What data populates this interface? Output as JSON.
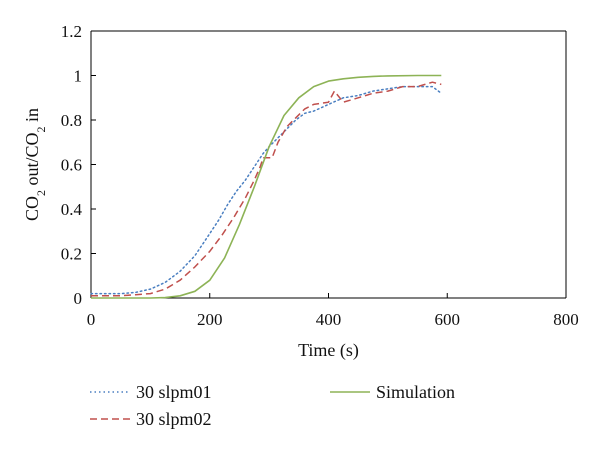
{
  "chart_data": {
    "type": "line",
    "title": "",
    "xlabel": "Time (s)",
    "ylabel": {
      "part1": "CO",
      "sub1": "2",
      "part2": " out/CO",
      "sub2": "2",
      "part3": " in"
    },
    "xlim": [
      0,
      800
    ],
    "ylim": [
      0,
      1.2
    ],
    "xticks": [
      0,
      200,
      400,
      600,
      800
    ],
    "yticks": [
      0,
      0.2,
      0.4,
      0.6,
      0.8,
      1,
      1.2
    ],
    "xtick_labels": [
      "0",
      "200",
      "400",
      "600",
      "800"
    ],
    "ytick_labels": [
      "0",
      "0.2",
      "0.4",
      "0.6",
      "0.8",
      "1",
      "1.2"
    ],
    "grid": false,
    "legend_position": "bottom",
    "series": [
      {
        "name": "30 slpm01",
        "style": "dotted",
        "color": "#4a7fc1",
        "x": [
          0,
          25,
          50,
          75,
          100,
          125,
          150,
          175,
          200,
          215,
          230,
          245,
          260,
          275,
          290,
          300,
          315,
          330,
          345,
          360,
          375,
          400,
          425,
          450,
          475,
          500,
          525,
          550,
          575,
          590
        ],
        "y": [
          0.02,
          0.02,
          0.02,
          0.025,
          0.04,
          0.07,
          0.12,
          0.19,
          0.29,
          0.35,
          0.42,
          0.48,
          0.53,
          0.59,
          0.65,
          0.68,
          0.72,
          0.76,
          0.8,
          0.83,
          0.84,
          0.87,
          0.9,
          0.91,
          0.93,
          0.94,
          0.95,
          0.95,
          0.95,
          0.92
        ]
      },
      {
        "name": "30 slpm02",
        "style": "dashed",
        "color": "#c0504d",
        "x": [
          0,
          25,
          50,
          75,
          100,
          125,
          150,
          175,
          200,
          220,
          240,
          260,
          275,
          285,
          290,
          300,
          305,
          315,
          330,
          345,
          360,
          375,
          400,
          410,
          425,
          450,
          475,
          500,
          525,
          550,
          575,
          590
        ],
        "y": [
          0.01,
          0.01,
          0.01,
          0.015,
          0.02,
          0.04,
          0.08,
          0.14,
          0.21,
          0.28,
          0.36,
          0.45,
          0.53,
          0.59,
          0.63,
          0.63,
          0.63,
          0.7,
          0.77,
          0.81,
          0.85,
          0.87,
          0.88,
          0.93,
          0.88,
          0.9,
          0.92,
          0.93,
          0.95,
          0.95,
          0.97,
          0.96
        ]
      },
      {
        "name": "Simulation",
        "style": "solid",
        "color": "#8db356",
        "x": [
          0,
          50,
          100,
          125,
          150,
          175,
          200,
          225,
          250,
          275,
          300,
          325,
          350,
          375,
          400,
          425,
          450,
          475,
          500,
          550,
          590
        ],
        "y": [
          0,
          0,
          0,
          0.002,
          0.01,
          0.03,
          0.08,
          0.18,
          0.33,
          0.5,
          0.68,
          0.82,
          0.9,
          0.95,
          0.975,
          0.985,
          0.992,
          0.996,
          0.998,
          1.0,
          1.0
        ]
      }
    ]
  }
}
